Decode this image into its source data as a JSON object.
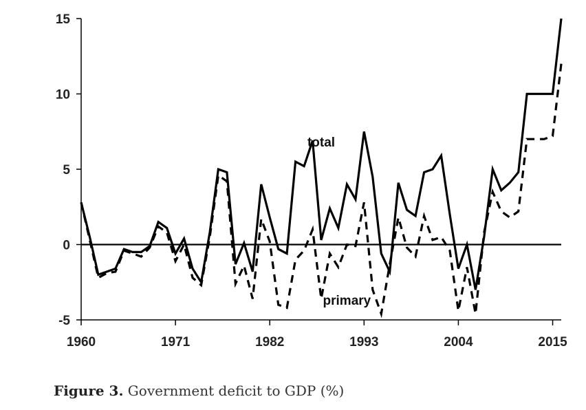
{
  "caption": {
    "label": "Figure 3.",
    "text": "Government deficit to GDP (%)"
  },
  "chart_data": {
    "type": "line",
    "title": "",
    "xlabel": "",
    "ylabel": "",
    "xlim": [
      1960,
      2016
    ],
    "ylim": [
      -5,
      15
    ],
    "grid": false,
    "zero_line": true,
    "x_ticks": [
      1960,
      1971,
      1982,
      1993,
      2004,
      2015
    ],
    "y_ticks": [
      -5,
      0,
      5,
      10,
      15
    ],
    "x": [
      1960,
      1961,
      1962,
      1963,
      1964,
      1965,
      1966,
      1967,
      1968,
      1969,
      1970,
      1971,
      1972,
      1973,
      1974,
      1975,
      1976,
      1977,
      1978,
      1979,
      1980,
      1981,
      1982,
      1983,
      1984,
      1985,
      1986,
      1987,
      1988,
      1989,
      1990,
      1991,
      1992,
      1993,
      1994,
      1995,
      1996,
      1997,
      1998,
      1999,
      2000,
      2001,
      2002,
      2003,
      2004,
      2005,
      2006,
      2007,
      2008,
      2009,
      2010,
      2011,
      2012,
      2013,
      2014,
      2015,
      2016
    ],
    "series": [
      {
        "name": "total",
        "style": "solid",
        "color": "#000000",
        "values": [
          2.8,
          0.5,
          -2.0,
          -1.8,
          -1.6,
          -0.3,
          -0.5,
          -0.5,
          -0.1,
          1.5,
          1.1,
          -0.6,
          0.4,
          -1.6,
          -2.5,
          0.8,
          5.0,
          4.8,
          -1.3,
          0.1,
          -1.8,
          4.0,
          1.8,
          -0.3,
          -0.6,
          5.5,
          5.2,
          6.9,
          0.3,
          2.4,
          1.1,
          4.0,
          3.0,
          7.5,
          4.5,
          -0.6,
          -1.8,
          4.1,
          2.3,
          1.9,
          4.8,
          5.0,
          5.9,
          2.0,
          -1.6,
          0.0,
          -3.0,
          0.5,
          5.0,
          3.6,
          4.1,
          4.8,
          10.0,
          10.0,
          10.0,
          10.0,
          15.0
        ]
      },
      {
        "name": "primary",
        "style": "dashed",
        "color": "#000000",
        "values": [
          2.8,
          0.3,
          -2.2,
          -1.9,
          -1.8,
          -0.4,
          -0.6,
          -0.8,
          -0.2,
          1.2,
          0.8,
          -1.1,
          0.0,
          -2.2,
          -2.7,
          0.5,
          4.6,
          4.2,
          -2.6,
          -1.4,
          -3.6,
          1.7,
          0.2,
          -4.0,
          -4.2,
          -1.0,
          -0.4,
          1.0,
          -3.6,
          -0.6,
          -1.5,
          0.0,
          -0.1,
          2.8,
          -3.0,
          -4.6,
          -1.3,
          1.8,
          -0.2,
          -0.8,
          1.9,
          0.3,
          0.5,
          -0.4,
          -4.4,
          -1.5,
          -4.6,
          0.8,
          3.5,
          2.2,
          1.8,
          2.2,
          7.0,
          7.0,
          7.0,
          7.2,
          12.0
        ]
      }
    ],
    "annotations": [
      {
        "text": "total",
        "x": 1988,
        "y": 6.5
      },
      {
        "text": "primary",
        "x": 1991,
        "y": -4.0
      }
    ]
  }
}
